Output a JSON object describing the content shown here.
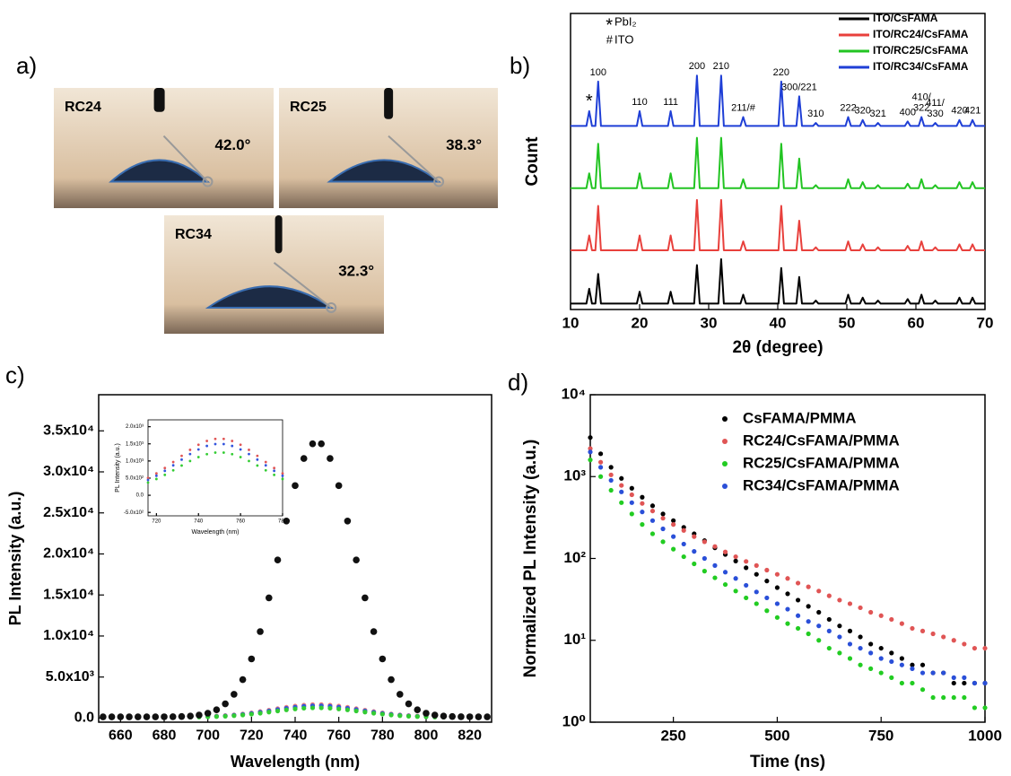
{
  "contact_angle_images": {
    "panel_label": "a)",
    "images": [
      {
        "sample": "RC24",
        "angle": "42.0°"
      },
      {
        "sample": "RC25",
        "angle": "38.3°"
      },
      {
        "sample": "RC34",
        "angle": "32.3°"
      }
    ]
  },
  "chart_data": [
    {
      "type": "line",
      "panel_label": "b)",
      "xlabel": "2θ (degree)",
      "ylabel": "Count",
      "xlim": [
        10,
        70
      ],
      "xticks": [
        10,
        20,
        30,
        40,
        50,
        60,
        70
      ],
      "ylim": [
        0,
        100
      ],
      "legend": "upper right",
      "x": [
        10,
        12.3,
        12.7,
        13.1,
        13.6,
        14.0,
        14.4,
        19.6,
        20.0,
        20.4,
        24.1,
        24.5,
        24.9,
        27.9,
        28.3,
        28.7,
        31.4,
        31.8,
        32.2,
        34.6,
        35.0,
        35.4,
        40.1,
        40.5,
        40.9,
        42.7,
        43.1,
        43.5,
        45.1,
        45.5,
        45.9,
        49.8,
        50.2,
        50.6,
        51.9,
        52.3,
        52.7,
        54.1,
        54.5,
        54.9,
        58.4,
        58.8,
        59.2,
        60.4,
        60.8,
        61.2,
        62.4,
        62.8,
        63.2,
        65.9,
        66.3,
        66.7,
        67.8,
        68.2,
        68.6,
        70
      ],
      "series": [
        {
          "name": "ITO/CsFAMA",
          "color": "#000000",
          "values": [
            2,
            2,
            7,
            2,
            2,
            12,
            2,
            2,
            6,
            2,
            2,
            6,
            2,
            2,
            15,
            2,
            2,
            17,
            2,
            2,
            5,
            2,
            2,
            14,
            2,
            2,
            11,
            2,
            2,
            3,
            2,
            2,
            5,
            2,
            2,
            4,
            2,
            2,
            3,
            2,
            2,
            3.5,
            2,
            2,
            5,
            2,
            2,
            3,
            2,
            2,
            4,
            2,
            2,
            4,
            2,
            2
          ]
        },
        {
          "name": "ITO/RC24/CsFAMA",
          "color": "#e8403c",
          "values": [
            20,
            20,
            25,
            20,
            20,
            35,
            20,
            20,
            25,
            20,
            20,
            25,
            20,
            20,
            37,
            20,
            20,
            37,
            20,
            20,
            23,
            20,
            20,
            35,
            20,
            20,
            30,
            20,
            20,
            21,
            20,
            20,
            23,
            20,
            20,
            22,
            20,
            20,
            21,
            20,
            20,
            21.5,
            20,
            20,
            23,
            20,
            20,
            21,
            20,
            20,
            22,
            20,
            20,
            22,
            20,
            20
          ]
        },
        {
          "name": "ITO/RC25/CsFAMA",
          "color": "#22c422",
          "values": [
            41,
            41,
            46,
            41,
            41,
            56,
            41,
            41,
            46,
            41,
            41,
            46,
            41,
            41,
            58,
            41,
            41,
            58,
            41,
            41,
            44,
            41,
            41,
            56,
            41,
            41,
            51,
            41,
            41,
            42,
            41,
            41,
            44,
            41,
            41,
            43,
            41,
            41,
            42,
            41,
            41,
            42.5,
            41,
            41,
            44,
            41,
            41,
            42,
            41,
            41,
            43,
            41,
            41,
            43,
            41,
            41
          ]
        },
        {
          "name": "ITO/RC34/CsFAMA",
          "color": "#1f3fd6",
          "values": [
            62,
            62,
            67,
            62,
            62,
            77,
            62,
            62,
            67,
            62,
            62,
            67,
            62,
            62,
            79,
            62,
            62,
            79,
            62,
            62,
            65,
            62,
            62,
            77,
            62,
            62,
            72,
            62,
            62,
            63,
            62,
            62,
            65,
            62,
            62,
            64,
            62,
            62,
            63,
            62,
            62,
            63.5,
            62,
            62,
            65,
            62,
            62,
            63,
            62,
            62,
            64,
            62,
            62,
            64,
            62,
            62
          ]
        }
      ],
      "peak_labels": [
        {
          "x": 12.7,
          "lines": [
            "*"
          ],
          "color": "#e8913a"
        },
        {
          "x": 14.0,
          "lines": [
            "100"
          ]
        },
        {
          "x": 20.0,
          "lines": [
            "110"
          ]
        },
        {
          "x": 24.5,
          "lines": [
            "111"
          ]
        },
        {
          "x": 28.3,
          "lines": [
            "200"
          ]
        },
        {
          "x": 31.8,
          "lines": [
            "210"
          ]
        },
        {
          "x": 35.0,
          "lines": [
            "211/#"
          ]
        },
        {
          "x": 40.5,
          "lines": [
            "220"
          ]
        },
        {
          "x": 43.1,
          "lines": [
            "300/221"
          ]
        },
        {
          "x": 45.5,
          "lines": [
            "310"
          ]
        },
        {
          "x": 50.2,
          "lines": [
            "222"
          ]
        },
        {
          "x": 52.3,
          "lines": [
            "320"
          ]
        },
        {
          "x": 54.5,
          "lines": [
            "321"
          ]
        },
        {
          "x": 58.8,
          "lines": [
            "400"
          ]
        },
        {
          "x": 60.8,
          "lines": [
            "410/",
            "322"
          ]
        },
        {
          "x": 62.8,
          "lines": [
            "411/",
            "330"
          ]
        },
        {
          "x": 66.3,
          "lines": [
            "420"
          ]
        },
        {
          "x": 68.2,
          "lines": [
            "421"
          ]
        }
      ],
      "marker_legend": [
        {
          "symbol": "*",
          "text": "PbI₂",
          "color": "#e8913a"
        },
        {
          "symbol": "#",
          "text": "ITO",
          "color": "#000000"
        }
      ]
    },
    {
      "type": "scatter",
      "panel_label": "c)",
      "xlabel": "Wavelength (nm)",
      "ylabel": "PL Intensity (a.u.)",
      "xlim": [
        650,
        830
      ],
      "xticks": [
        660,
        680,
        700,
        720,
        740,
        760,
        780,
        800,
        820
      ],
      "ylim": [
        -500,
        39400
      ],
      "yticks": [
        {
          "value": 0,
          "label": "0.0"
        },
        {
          "value": 5000,
          "label": "5.0x10³"
        },
        {
          "value": 10000,
          "label": "1.0x10⁴"
        },
        {
          "value": 15000,
          "label": "1.5x10⁴"
        },
        {
          "value": 20000,
          "label": "2.0x10⁴"
        },
        {
          "value": 25000,
          "label": "2.5x10⁴"
        },
        {
          "value": 30000,
          "label": "3.0x10⁴"
        },
        {
          "value": 35000,
          "label": "3.5x10⁴"
        }
      ],
      "x": [
        652,
        656,
        660,
        664,
        668,
        672,
        676,
        680,
        684,
        688,
        692,
        696,
        700,
        704,
        708,
        712,
        716,
        720,
        724,
        728,
        732,
        736,
        740,
        744,
        748,
        752,
        756,
        760,
        764,
        768,
        772,
        776,
        780,
        784,
        788,
        792,
        796,
        800,
        804,
        808,
        812,
        816,
        820,
        824,
        828
      ],
      "series": [
        {
          "color": "#f08080",
          "values": [
            150,
            150,
            150,
            150,
            150,
            150,
            152,
            153,
            156,
            162,
            173,
            189,
            216,
            257,
            315,
            396,
            504,
            638,
            795,
            969,
            1150,
            1325,
            1473,
            1584,
            1643,
            1643,
            1584,
            1473,
            1325,
            1150,
            969,
            795,
            638,
            504,
            396,
            315,
            257,
            216,
            189,
            173,
            162,
            156,
            153,
            152,
            150
          ]
        },
        {
          "color": "#3355dd",
          "values": [
            120,
            120,
            120,
            120,
            120,
            120,
            121,
            123,
            126,
            131,
            141,
            156,
            181,
            218,
            272,
            346,
            446,
            569,
            713,
            873,
            1040,
            1201,
            1337,
            1439,
            1493,
            1493,
            1439,
            1337,
            1201,
            1040,
            873,
            713,
            569,
            446,
            346,
            272,
            218,
            181,
            156,
            141,
            131,
            126,
            123,
            121,
            120
          ]
        },
        {
          "color": "#33cc33",
          "values": [
            100,
            100,
            100,
            100,
            100,
            100,
            101,
            103,
            105,
            109,
            117,
            130,
            151,
            182,
            227,
            289,
            371,
            474,
            595,
            728,
            867,
            1000,
            1114,
            1199,
            1244,
            1244,
            1199,
            1114,
            1000,
            867,
            728,
            595,
            474,
            371,
            289,
            227,
            182,
            151,
            130,
            117,
            109,
            105,
            103,
            101,
            100
          ]
        },
        {
          "color": "#111111",
          "values": [
            150,
            150,
            150,
            150,
            150,
            151,
            153,
            157,
            168,
            193,
            250,
            366,
            592,
            1011,
            1735,
            2900,
            4683,
            7208,
            10540,
            14650,
            19270,
            24010,
            28320,
            31630,
            33420,
            33420,
            31630,
            28320,
            24010,
            19270,
            14650,
            10540,
            7208,
            4683,
            2900,
            1735,
            1011,
            592,
            366,
            250,
            193,
            168,
            157,
            153,
            151
          ]
        }
      ]
    },
    {
      "type": "scatter",
      "xlabel": "Wavelength (nm)",
      "ylabel": "PL Intensity (a.u.)",
      "xlim": [
        716,
        780
      ],
      "xticks": [
        720,
        740,
        760,
        780
      ],
      "ylim": [
        -600,
        2200
      ],
      "yticks": [
        {
          "value": -500,
          "label": "-5.0x10²"
        },
        {
          "value": 0,
          "label": "0.0"
        },
        {
          "value": 500,
          "label": "5.0x10²"
        },
        {
          "value": 1000,
          "label": "1.0x10³"
        },
        {
          "value": 1500,
          "label": "1.5x10³"
        },
        {
          "value": 2000,
          "label": "2.0x10³"
        }
      ],
      "x": [
        716,
        720,
        724,
        728,
        732,
        736,
        740,
        744,
        748,
        752,
        756,
        760,
        764,
        768,
        772,
        776,
        780
      ],
      "series": [
        {
          "color": "#e05555",
          "values": [
            504,
            638,
            795,
            969,
            1150,
            1325,
            1473,
            1584,
            1643,
            1643,
            1584,
            1473,
            1325,
            1150,
            969,
            795,
            638
          ]
        },
        {
          "color": "#3355dd",
          "values": [
            446,
            569,
            713,
            873,
            1040,
            1201,
            1337,
            1439,
            1493,
            1493,
            1439,
            1337,
            1201,
            1040,
            873,
            713,
            569
          ]
        },
        {
          "color": "#33cc33",
          "values": [
            371,
            474,
            595,
            728,
            867,
            1000,
            1114,
            1199,
            1244,
            1244,
            1199,
            1114,
            1000,
            867,
            728,
            595,
            474
          ]
        }
      ]
    },
    {
      "type": "scatter",
      "panel_label": "d)",
      "xlabel": "Time (ns)",
      "ylabel": "Normalized PL Intensity (a.u.)",
      "xlim": [
        50,
        1000
      ],
      "xticks": [
        250,
        500,
        750,
        1000
      ],
      "ylim": [
        1,
        10000
      ],
      "log_y": true,
      "legend": "upper right",
      "yticks": [
        {
          "value": 1,
          "label": "10⁰"
        },
        {
          "value": 10,
          "label": "10¹"
        },
        {
          "value": 100,
          "label": "10²"
        },
        {
          "value": 1000,
          "label": "10³"
        },
        {
          "value": 10000,
          "label": "10⁴"
        }
      ],
      "x": [
        50,
        75,
        100,
        125,
        150,
        175,
        200,
        225,
        250,
        275,
        300,
        325,
        350,
        375,
        400,
        425,
        450,
        475,
        500,
        525,
        550,
        575,
        600,
        625,
        650,
        675,
        700,
        725,
        750,
        775,
        800,
        825,
        850,
        875,
        900,
        925,
        950,
        975,
        1000
      ],
      "series": [
        {
          "name": "CsFAMA/PMMA",
          "color": "#000000",
          "values": [
            3000,
            1900,
            1300,
            950,
            720,
            560,
            440,
            350,
            290,
            240,
            200,
            165,
            135,
            112,
            93,
            77,
            64,
            53,
            44,
            37,
            31,
            26,
            22,
            18,
            15,
            13,
            11,
            9,
            8,
            7,
            6,
            5,
            5,
            4,
            4,
            3,
            3,
            3,
            3
          ]
        },
        {
          "name": "RC24/CsFAMA/PMMA",
          "color": "#e05555",
          "values": [
            2200,
            1500,
            1050,
            780,
            600,
            470,
            380,
            310,
            260,
            220,
            185,
            160,
            140,
            120,
            105,
            92,
            82,
            72,
            64,
            57,
            50,
            45,
            40,
            35,
            31,
            28,
            25,
            22,
            20,
            18,
            16,
            14,
            13,
            12,
            11,
            10,
            9,
            8,
            8
          ]
        },
        {
          "name": "RC25/CsFAMA/PMMA",
          "color": "#22cc22",
          "values": [
            1600,
            1000,
            680,
            480,
            350,
            260,
            200,
            160,
            130,
            105,
            86,
            70,
            58,
            48,
            40,
            33,
            28,
            23,
            19,
            16,
            14,
            12,
            10,
            8,
            7,
            6,
            5,
            4.5,
            4,
            3.5,
            3,
            3,
            2.5,
            2,
            2,
            2,
            2,
            1.5,
            1.5
          ]
        },
        {
          "name": "RC34/CsFAMA/PMMA",
          "color": "#2a4fd8",
          "values": [
            2000,
            1300,
            900,
            650,
            480,
            370,
            290,
            230,
            185,
            150,
            122,
            100,
            82,
            68,
            57,
            47,
            39,
            33,
            28,
            24,
            20,
            17,
            15,
            13,
            11,
            9,
            8,
            7,
            6,
            5.5,
            5,
            4.5,
            4,
            4,
            4,
            3.5,
            3.5,
            3,
            3
          ]
        }
      ]
    }
  ]
}
